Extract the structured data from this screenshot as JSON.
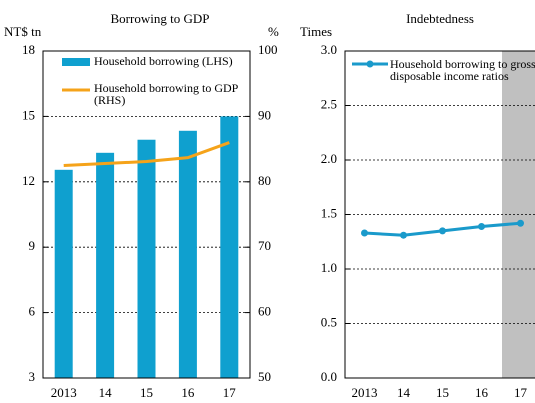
{
  "chart_data": [
    {
      "type": "bar_line",
      "title": "Borrowing to GDP",
      "ylabel": "NT$ tn",
      "y2label": "%",
      "categories": [
        "2013",
        "14",
        "15",
        "16",
        "17"
      ],
      "series": [
        {
          "name": "Household borrowing (LHS)",
          "color": "#0fa0cf",
          "type": "bar",
          "values": [
            12.55,
            13.33,
            13.93,
            14.34,
            15.0
          ]
        },
        {
          "name": "Household borrowing to GDP (RHS)",
          "color": "#f5a31a",
          "type": "line",
          "axis": "y2",
          "values": [
            82.5,
            82.8,
            83.1,
            83.7,
            86.0
          ]
        }
      ],
      "ylim": [
        3,
        18
      ],
      "yticks": [
        3,
        6,
        9,
        12,
        15,
        18
      ],
      "y2lim": [
        50,
        100
      ],
      "y2ticks": [
        50,
        60,
        70,
        80,
        90,
        100
      ],
      "grid": true
    },
    {
      "type": "line",
      "title": "Indebtedness",
      "ylabel": "Times",
      "categories": [
        "2013",
        "14",
        "15",
        "16",
        "17"
      ],
      "series": [
        {
          "name": "Household borrowing to gross disposable income ratios",
          "color": "#1a9acb",
          "values": [
            1.33,
            1.31,
            1.35,
            1.39,
            1.42
          ]
        }
      ],
      "ylim": [
        0,
        3
      ],
      "yticks": [
        {
          "value": 0,
          "label": "0.0"
        },
        {
          "value": 0.5,
          "label": "0.5"
        },
        {
          "value": 1,
          "label": "1.0"
        },
        {
          "value": 1.5,
          "label": "1.5"
        },
        {
          "value": 2,
          "label": "2.0"
        },
        {
          "value": 2.5,
          "label": "2.5"
        },
        {
          "value": 3,
          "label": "3.0"
        }
      ],
      "grid": true
    }
  ]
}
